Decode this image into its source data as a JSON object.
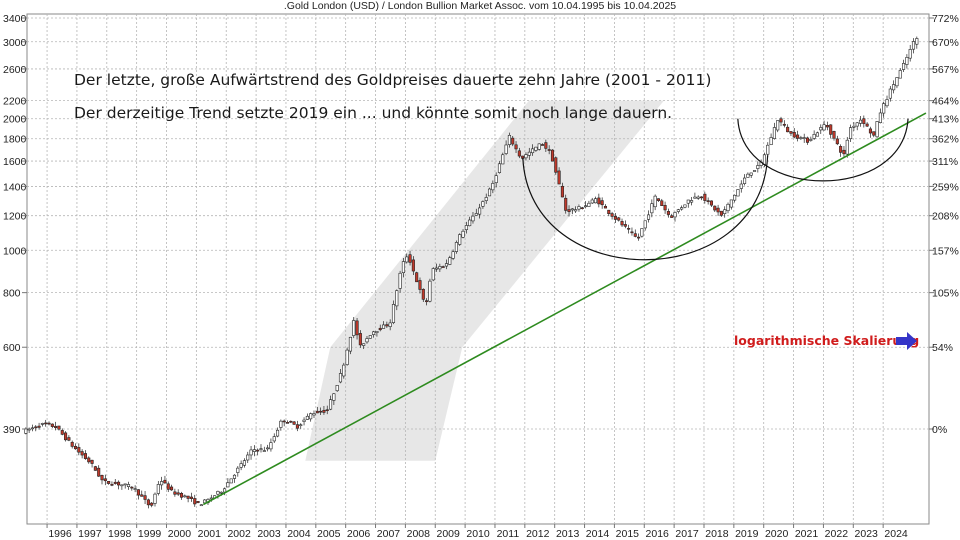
{
  "chart_data": {
    "type": "candlestick",
    "title": ".Gold London (USD) / London Bullion Market Assoc. vom 10.04.1995 bis 10.04.2025",
    "yscale": "log",
    "ylim": [
      255,
      3400
    ],
    "left_ticks": [
      "3400",
      "3000",
      "2600",
      "2200",
      "2000",
      "1800",
      "1600",
      "1400",
      "1200",
      "1000",
      "800",
      "600",
      "390"
    ],
    "right_ticks": [
      {
        "label": "772%",
        "value": 3400
      },
      {
        "label": "670%",
        "value": 3000
      },
      {
        "label": "567%",
        "value": 2600
      },
      {
        "label": "464%",
        "value": 2200
      },
      {
        "label": "413%",
        "value": 2000
      },
      {
        "label": "362%",
        "value": 1800
      },
      {
        "label": "311%",
        "value": 1600
      },
      {
        "label": "259%",
        "value": 1400
      },
      {
        "label": "208%",
        "value": 1200
      },
      {
        "label": "157%",
        "value": 1000
      },
      {
        "label": "105%",
        "value": 800
      },
      {
        "label": "54%",
        "value": 600
      },
      {
        "label": "0%",
        "value": 390
      }
    ],
    "x_labels": [
      "1996",
      "1997",
      "1998",
      "1999",
      "2000",
      "2001",
      "2002",
      "2003",
      "2004",
      "2005",
      "2006",
      "2007",
      "2008",
      "2009",
      "2010",
      "2011",
      "2012",
      "2013",
      "2014",
      "2015",
      "2016",
      "2017",
      "2018",
      "2019",
      "2020",
      "2021",
      "2022",
      "2023",
      "2024"
    ],
    "price_path": [
      [
        1995.3,
        385
      ],
      [
        1996.0,
        400
      ],
      [
        1996.4,
        395
      ],
      [
        1997.0,
        355
      ],
      [
        1997.6,
        325
      ],
      [
        1998.0,
        295
      ],
      [
        1998.5,
        292
      ],
      [
        1999.0,
        287
      ],
      [
        1999.6,
        258
      ],
      [
        1999.9,
        300
      ],
      [
        2000.3,
        280
      ],
      [
        2000.8,
        272
      ],
      [
        2001.2,
        262
      ],
      [
        2001.5,
        268
      ],
      [
        2002.0,
        283
      ],
      [
        2002.5,
        315
      ],
      [
        2003.0,
        350
      ],
      [
        2003.5,
        350
      ],
      [
        2004.0,
        410
      ],
      [
        2004.5,
        395
      ],
      [
        2005.0,
        425
      ],
      [
        2005.5,
        430
      ],
      [
        2006.0,
        530
      ],
      [
        2006.4,
        690
      ],
      [
        2006.6,
        600
      ],
      [
        2007.0,
        650
      ],
      [
        2007.6,
        680
      ],
      [
        2008.0,
        920
      ],
      [
        2008.2,
        980
      ],
      [
        2008.8,
        740
      ],
      [
        2009.0,
        900
      ],
      [
        2009.5,
        930
      ],
      [
        2010.0,
        1100
      ],
      [
        2010.5,
        1220
      ],
      [
        2011.0,
        1390
      ],
      [
        2011.6,
        1820
      ],
      [
        2012.0,
        1620
      ],
      [
        2012.7,
        1760
      ],
      [
        2013.0,
        1660
      ],
      [
        2013.5,
        1230
      ],
      [
        2014.0,
        1250
      ],
      [
        2014.5,
        1310
      ],
      [
        2015.0,
        1210
      ],
      [
        2015.9,
        1060
      ],
      [
        2016.5,
        1330
      ],
      [
        2017.0,
        1190
      ],
      [
        2017.6,
        1300
      ],
      [
        2018.0,
        1340
      ],
      [
        2018.7,
        1200
      ],
      [
        2019.0,
        1290
      ],
      [
        2019.6,
        1500
      ],
      [
        2020.0,
        1560
      ],
      [
        2020.6,
        2000
      ],
      [
        2021.0,
        1850
      ],
      [
        2021.6,
        1780
      ],
      [
        2022.2,
        1950
      ],
      [
        2022.8,
        1640
      ],
      [
        2023.0,
        1900
      ],
      [
        2023.4,
        2000
      ],
      [
        2023.8,
        1820
      ],
      [
        2024.0,
        2050
      ],
      [
        2024.4,
        2350
      ],
      [
        2024.8,
        2650
      ],
      [
        2025.2,
        3050
      ]
    ],
    "trendline": {
      "start": [
        2001.3,
        262
      ],
      "end": [
        2025.5,
        2060
      ],
      "color": "#2e8b1f"
    },
    "arcs": [
      {
        "from": [
          2012.0,
          1630
        ],
        "to": [
          2020.2,
          1650
        ],
        "bottom": [
          2016.1,
          950
        ]
      },
      {
        "from": [
          2019.2,
          2000
        ],
        "to": [
          2024.9,
          2000
        ],
        "bottom": [
          2022.1,
          1440
        ]
      }
    ],
    "highlight_band": {
      "from": "2001",
      "to": "2011",
      "color": "#e4e4e4"
    },
    "annotations": [
      "Der letzte, große Aufwärtstrend des Goldpreises dauerte zehn Jahre (2001 - 2011)",
      "Der derzeitige Trend setzte 2019 ein ... und könnte somit noch lange dauern."
    ],
    "log_note": "logarithmische Skalierung",
    "colors": {
      "up": "#ffffff",
      "down": "#c0392b",
      "trend": "#2e8b1f",
      "arc": "#111111",
      "note": "#d01c1c",
      "arrow": "#3535c8"
    }
  }
}
